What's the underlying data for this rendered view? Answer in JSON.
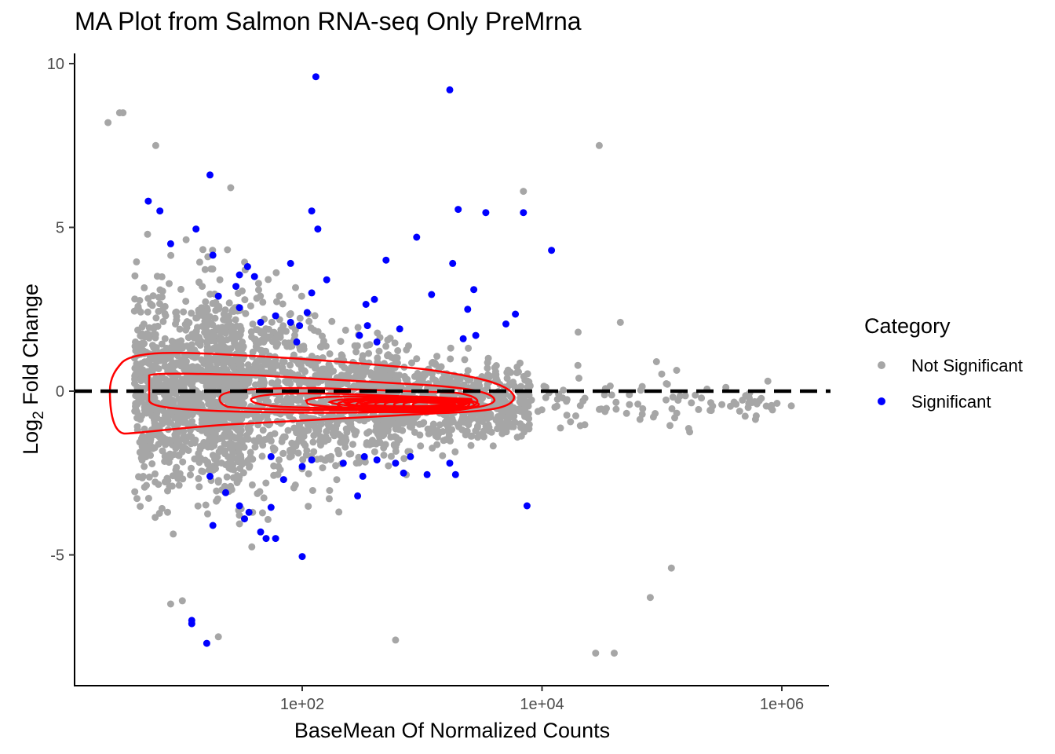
{
  "chart_data": {
    "type": "scatter",
    "title": "MA Plot from Salmon RNA-seq Only PreMrna",
    "xlabel": "BaseMean Of Normalized Counts",
    "ylabel_main": "Log",
    "ylabel_sub": "2",
    "ylabel_rest": " Fold Change",
    "x_scale": "log10",
    "xlim": [
      1.6,
      2000000
    ],
    "ylim": [
      -8.9,
      10.3
    ],
    "x_ticks": [
      {
        "value": 100,
        "label": "1e+02"
      },
      {
        "value": 10000,
        "label": "1e+04"
      },
      {
        "value": 1000000,
        "label": "1e+06"
      }
    ],
    "y_ticks": [
      {
        "value": 10,
        "label": "10"
      },
      {
        "value": 5,
        "label": "5"
      },
      {
        "value": 0,
        "label": "0"
      },
      {
        "value": -5,
        "label": "-5"
      }
    ],
    "reference_line": {
      "y": 0,
      "style": "dashed",
      "color": "#000000"
    },
    "grid": false,
    "legend": {
      "title": "Category",
      "position": "right",
      "entries": [
        {
          "name": "Not Significant",
          "color": "#a6a6a6"
        },
        {
          "name": "Significant",
          "color": "#0000ff"
        }
      ]
    },
    "density_contour_color": "#ff0000",
    "series": [
      {
        "name": "Significant",
        "color": "#0000ff",
        "points": [
          [
            130,
            9.6
          ],
          [
            1700,
            9.2
          ],
          [
            17,
            6.6
          ],
          [
            5.2,
            5.8
          ],
          [
            6.5,
            5.5
          ],
          [
            120,
            5.5
          ],
          [
            2000,
            5.55
          ],
          [
            3400,
            5.45
          ],
          [
            7000,
            5.45
          ],
          [
            135,
            4.95
          ],
          [
            13,
            4.95
          ],
          [
            900,
            4.7
          ],
          [
            8,
            4.5
          ],
          [
            12000,
            4.3
          ],
          [
            18,
            4.15
          ],
          [
            80,
            3.9
          ],
          [
            500,
            4.0
          ],
          [
            1800,
            3.9
          ],
          [
            35,
            3.8
          ],
          [
            30,
            3.55
          ],
          [
            40,
            3.5
          ],
          [
            28,
            3.2
          ],
          [
            160,
            3.4
          ],
          [
            120,
            3.0
          ],
          [
            1200,
            2.95
          ],
          [
            2700,
            3.1
          ],
          [
            20,
            2.9
          ],
          [
            30,
            2.55
          ],
          [
            6000,
            2.35
          ],
          [
            60,
            2.3
          ],
          [
            45,
            2.1
          ],
          [
            80,
            2.1
          ],
          [
            340,
            2.65
          ],
          [
            400,
            2.8
          ],
          [
            2400,
            2.5
          ],
          [
            110,
            2.4
          ],
          [
            350,
            2.0
          ],
          [
            95,
            2.0
          ],
          [
            300,
            1.7
          ],
          [
            420,
            1.5
          ],
          [
            2800,
            1.7
          ],
          [
            5000,
            2.05
          ],
          [
            650,
            1.9
          ],
          [
            2200,
            1.6
          ],
          [
            90,
            1.5
          ],
          [
            55,
            -2.0
          ],
          [
            120,
            -2.1
          ],
          [
            220,
            -2.2
          ],
          [
            330,
            -2.0
          ],
          [
            420,
            -2.1
          ],
          [
            800,
            -2.0
          ],
          [
            600,
            -2.2
          ],
          [
            1700,
            -2.2
          ],
          [
            100,
            -2.3
          ],
          [
            700,
            -2.5
          ],
          [
            1100,
            -2.55
          ],
          [
            1900,
            -2.55
          ],
          [
            320,
            -2.6
          ],
          [
            70,
            -2.7
          ],
          [
            17,
            -2.6
          ],
          [
            23,
            -3.1
          ],
          [
            290,
            -3.2
          ],
          [
            30,
            -3.5
          ],
          [
            33,
            -3.9
          ],
          [
            36,
            -3.7
          ],
          [
            55,
            -3.55
          ],
          [
            45,
            -4.3
          ],
          [
            50,
            -4.5
          ],
          [
            60,
            -4.5
          ],
          [
            18,
            -4.1
          ],
          [
            7500,
            -3.5
          ],
          [
            100,
            -5.05
          ],
          [
            12,
            -7.0
          ],
          [
            12,
            -7.1
          ],
          [
            16,
            -7.7
          ]
        ]
      }
    ]
  }
}
